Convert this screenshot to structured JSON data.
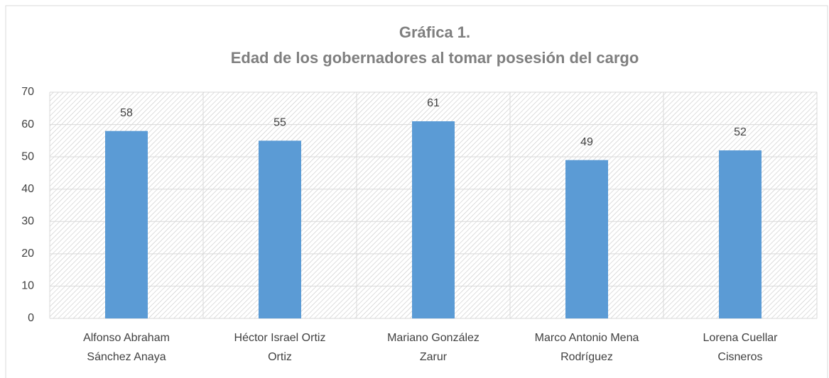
{
  "chart_data": {
    "type": "bar",
    "title": "Gráfica 1.",
    "subtitle": "Edad de los gobernadores al tomar posesión del cargo",
    "categories": [
      [
        "Alfonso Abraham",
        "Sánchez Anaya"
      ],
      [
        "Héctor Israel Ortiz",
        "Ortiz"
      ],
      [
        "Mariano González",
        "Zarur"
      ],
      [
        "Marco Antonio Mena",
        "Rodríguez"
      ],
      [
        "Lorena Cuellar",
        "Cisneros"
      ]
    ],
    "values": [
      58,
      55,
      61,
      49,
      52
    ],
    "color": "#5b9bd5",
    "ylim": [
      0,
      70
    ],
    "yticks": [
      0,
      10,
      20,
      30,
      40,
      50,
      60,
      70
    ],
    "grid": true
  }
}
